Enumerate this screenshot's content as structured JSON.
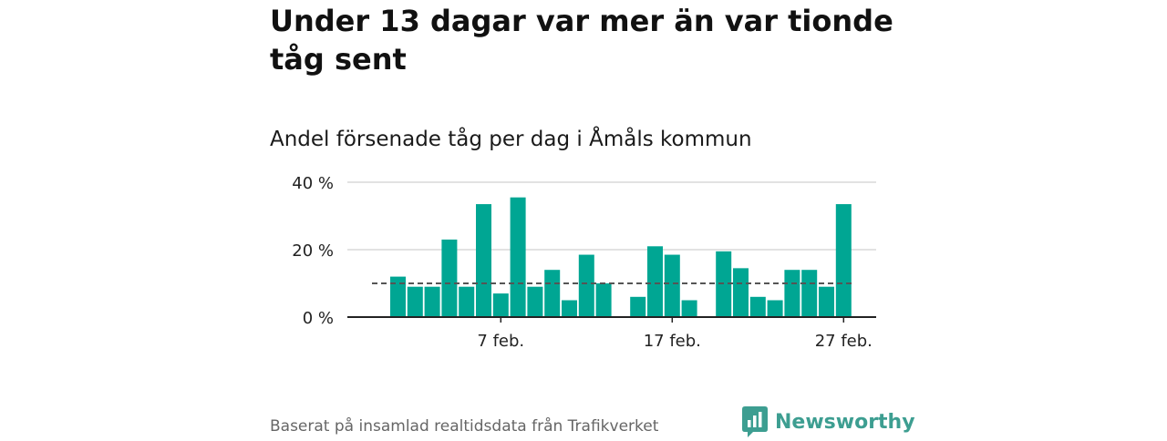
{
  "title": "Under 13 dagar var mer än var tionde tåg sent",
  "subtitle": "Andel försenade tåg per dag i Åmåls kommun",
  "footer": "Baserat på insamlad realtidsdata från Trafikverket",
  "brand": {
    "name": "Newsworthy",
    "icon": "newsworthy-logo-icon",
    "color": "#3d9e91"
  },
  "chart_data": {
    "type": "bar",
    "x": [
      "1 feb.",
      "2 feb.",
      "3 feb.",
      "4 feb.",
      "5 feb.",
      "6 feb.",
      "7 feb.",
      "8 feb.",
      "9 feb.",
      "10 feb.",
      "11 feb.",
      "12 feb.",
      "13 feb.",
      "14 feb.",
      "15 feb.",
      "16 feb.",
      "17 feb.",
      "18 feb.",
      "19 feb.",
      "20 feb.",
      "21 feb.",
      "22 feb.",
      "23 feb.",
      "24 feb.",
      "25 feb.",
      "26 feb.",
      "27 feb.",
      "28 feb."
    ],
    "values": [
      12,
      9,
      9,
      23,
      9,
      33.5,
      7,
      35.5,
      9,
      14,
      5,
      18.5,
      10,
      null,
      6,
      21,
      18.5,
      5,
      null,
      19.5,
      14.5,
      6,
      5,
      14,
      14,
      9,
      33.5,
      null
    ],
    "reference_line": 10,
    "reference_style": "dashed",
    "yticks": [
      "0 %",
      "20 %",
      "40 %"
    ],
    "ylim": [
      0,
      40
    ],
    "xticks": [
      "7 feb.",
      "17 feb.",
      "27 feb."
    ],
    "grid": true,
    "bar_color": "#00a693"
  }
}
